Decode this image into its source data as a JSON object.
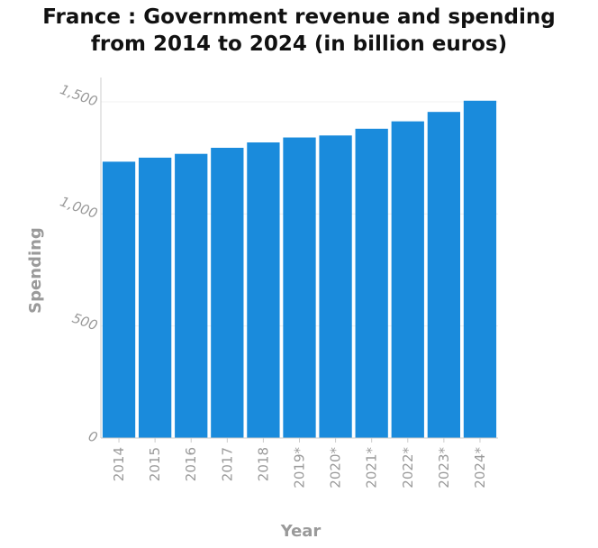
{
  "chart_data": {
    "type": "bar",
    "title_line1": "France : Government revenue and spending",
    "title_line2": "from 2014 to 2024 (in billion euros)",
    "xlabel": "Year",
    "ylabel": "Spending",
    "categories": [
      "2014",
      "2015",
      "2016",
      "2017",
      "2018",
      "2019*",
      "2020*",
      "2021*",
      "2022*",
      "2023*",
      "2024*"
    ],
    "values": [
      1233,
      1251,
      1268,
      1295,
      1319,
      1341,
      1350,
      1380,
      1413,
      1455,
      1505
    ],
    "ylim": [
      0,
      1500
    ],
    "yticks": [
      0,
      500,
      1000,
      1500
    ],
    "ytick_labels": [
      "0",
      "500",
      "1,000",
      "1,500"
    ],
    "bar_color": "#1a8bdc",
    "grid": "horizontal"
  }
}
